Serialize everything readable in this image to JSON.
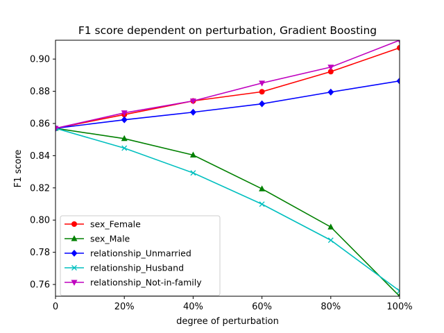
{
  "chart_data": {
    "type": "line",
    "title": "F1 score dependent on perturbation, Gradient Boosting",
    "xlabel": "degree of perturbation",
    "ylabel": "F1 score",
    "x": [
      0,
      20,
      40,
      60,
      80,
      100
    ],
    "x_tick_labels": [
      "0",
      "20%",
      "40%",
      "60%",
      "80%",
      "100%"
    ],
    "xlim": [
      0,
      100
    ],
    "ylim": [
      0.7527,
      0.9117
    ],
    "y_ticks": [
      0.76,
      0.78,
      0.8,
      0.82,
      0.84,
      0.86,
      0.88,
      0.9
    ],
    "y_tick_labels": [
      "0.76",
      "0.78",
      "0.80",
      "0.82",
      "0.84",
      "0.86",
      "0.88",
      "0.90"
    ],
    "grid": false,
    "legend_position": "lower-left",
    "series": [
      {
        "name": "sex_Female",
        "color": "#ff0000",
        "marker": "circle",
        "values": [
          0.857,
          0.8655,
          0.874,
          0.8797,
          0.8922,
          0.907
        ]
      },
      {
        "name": "sex_Male",
        "color": "#008000",
        "marker": "triangle-up",
        "values": [
          0.857,
          0.8506,
          0.8404,
          0.8194,
          0.7957,
          0.7527
        ]
      },
      {
        "name": "relationship_Unmarried",
        "color": "#0000ff",
        "marker": "diamond",
        "values": [
          0.857,
          0.8623,
          0.867,
          0.8722,
          0.8795,
          0.8864
        ]
      },
      {
        "name": "relationship_Husband",
        "color": "#00bfbf",
        "marker": "x",
        "values": [
          0.857,
          0.8447,
          0.8293,
          0.8099,
          0.7875,
          0.756
        ]
      },
      {
        "name": "relationship_Not-in-family",
        "color": "#bf00bf",
        "marker": "triangle-down",
        "values": [
          0.857,
          0.8666,
          0.874,
          0.8851,
          0.895,
          0.9117
        ]
      }
    ]
  }
}
